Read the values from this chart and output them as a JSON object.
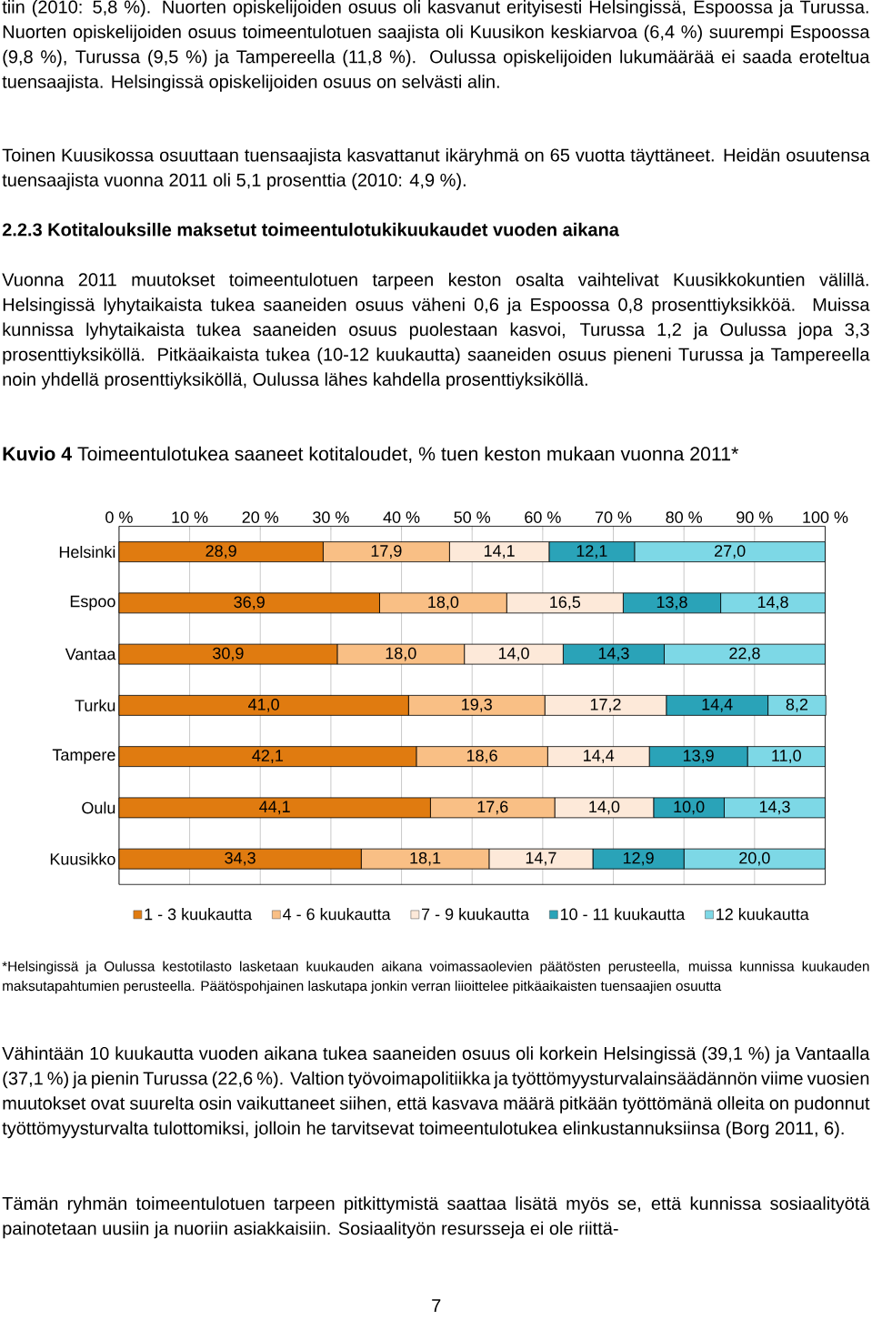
{
  "chart_data": {
    "type": "bar",
    "orientation": "horizontal",
    "stacked": true,
    "title": "**Kuvio 4** Toimeentulotukea saaneet kotitaloudet, % tuen keston mukaan vuonna 2011*",
    "categories": [
      "Helsinki",
      "Espoo",
      "Vantaa",
      "Turku",
      "Tampere",
      "Oulu",
      "Kuusikko"
    ],
    "series": [
      {
        "name": "1 - 3 kuukautta",
        "color": "#e07b10",
        "values": [
          28.9,
          36.9,
          30.9,
          41.0,
          42.1,
          44.1,
          34.3
        ],
        "value_labels": [
          "28,9",
          "36,9",
          "30,9",
          "41,0",
          "42,1",
          "44,1",
          "34,3"
        ]
      },
      {
        "name": "4 - 6 kuukautta",
        "color": "#f9bf85",
        "values": [
          17.9,
          18.0,
          18.0,
          19.3,
          18.6,
          17.6,
          18.1
        ],
        "value_labels": [
          "17,9",
          "18,0",
          "18,0",
          "19,3",
          "18,6",
          "17,6",
          "18,1"
        ]
      },
      {
        "name": "7 - 9 kuukautta",
        "color": "#fde9d9",
        "values": [
          14.1,
          16.5,
          14.0,
          17.2,
          14.4,
          14.0,
          14.7
        ],
        "value_labels": [
          "14,1",
          "16,5",
          "14,0",
          "17,2",
          "14,4",
          "14,0",
          "14,7"
        ]
      },
      {
        "name": "10 - 11 kuukautta",
        "color": "#2aa3b8",
        "values": [
          12.1,
          13.8,
          14.3,
          14.4,
          13.9,
          10.0,
          12.9
        ],
        "value_labels": [
          "12,1",
          "13,8",
          "14,3",
          "14,4",
          "13,9",
          "10,0",
          "12,9"
        ]
      },
      {
        "name": "12 kuukautta",
        "color": "#7dd8e6",
        "values": [
          27.0,
          14.8,
          22.8,
          8.2,
          11.0,
          14.3,
          20.0
        ],
        "value_labels": [
          "27,0",
          "14,8",
          "22,8",
          "8,2",
          "11,0",
          "14,3",
          "20,0"
        ]
      }
    ],
    "xlim": [
      0,
      100
    ],
    "xticks": [
      {
        "value": 0,
        "label": "0 %"
      },
      {
        "value": 10,
        "label": "10 %"
      },
      {
        "value": 20,
        "label": "20 %"
      },
      {
        "value": 30,
        "label": "30 %"
      },
      {
        "value": 40,
        "label": "40 %"
      },
      {
        "value": 50,
        "label": "50 %"
      },
      {
        "value": 60,
        "label": "60 %"
      },
      {
        "value": 70,
        "label": "70 %"
      },
      {
        "value": 80,
        "label": "80 %"
      },
      {
        "value": 90,
        "label": "90 %"
      },
      {
        "value": 100,
        "label": "100 %"
      }
    ],
    "grid": "x",
    "legend": "bottom",
    "annotations": [
      "tiin (2010: 5,8 %). Nuorten opiskelijoiden osuus oli kasvanut erityisesti Helsingissä, Espoossa ja Turussa. Nuorten opiskelijoiden osuus toimeentulotuen saajista oli Kuusikon keskiarvoa (6,4 %) suurempi Espoossa (9,8 %), Turussa (9,5 %) ja Tampereella (11,8 %). Oulussa opiskelijoiden lukumäärää ei saada eroteltua tuensaajista. Helsingissä opiskelijoiden osuus on selvästi alin.",
      "Toinen Kuusikossa osuuttaan tuensaajista kasvattanut ikäryhmä on 65 vuotta täyttäneet. Heidän osuutensa tuensaajista vuonna 2011 oli 5,1 prosenttia (2010: 4,9 %).",
      "2.2.3 Kotitalouksille maksetut toimeentulotukikuukaudet vuoden aikana",
      "Vuonna 2011 muutokset toimeentulotuen tarpeen keston osalta vaihtelivat Kuusikkokuntien välillä. Helsingissä lyhytaikaista tukea saaneiden osuus väheni 0,6 ja Espoossa 0,8 prosenttiyksikköä. Muissa kunnissa lyhytaikaista tukea saaneiden osuus puolestaan kasvoi, Turussa 1,2 ja Oulussa jopa 3,3 prosenttiyksiköllä. Pitkäaikaista tukea (10-12 kuukautta) saaneiden osuus pieneni Turussa ja Tampereella noin yhdellä prosenttiyksiköllä, Oulussa lähes kahdella prosenttiyksiköllä.",
      "*Helsingissä ja Oulussa kestotilasto lasketaan kuukauden aikana voimassaolevien päätösten perusteella, muissa kunnissa kuukauden maksutapahtumien perusteella. Päätöspohjainen laskutapa jonkin verran liioittelee pitkäaikaisten tuensaajien osuutta",
      "Vähintään 10 kuukautta vuoden aikana tukea saaneiden osuus oli korkein Helsingissä (39,1 %) ja Vantaalla (37,1 %) ja pienin Turussa (22,6 %). Valtion työvoimapolitiikka ja työttömyysturvalainsäädännön viime vuosien muutokset ovat suurelta osin vaikuttaneet siihen, että kasvava määrä pitkään työttömänä olleita on pudonnut työttömyysturvalta tulottomiksi, jolloin he tarvitsevat toimeentulotukea elinkustannuksiinsa (Borg 2011, 6).",
      "Tämän ryhmän toimeentulotuen tarpeen pitkittymistä saattaa lisätä myös se, että kunnissa sosiaalityötä painotetaan uusiin ja nuoriin asiakkaisiin. Sosiaalityön resursseja ei ole riittä-",
      "7"
    ]
  }
}
